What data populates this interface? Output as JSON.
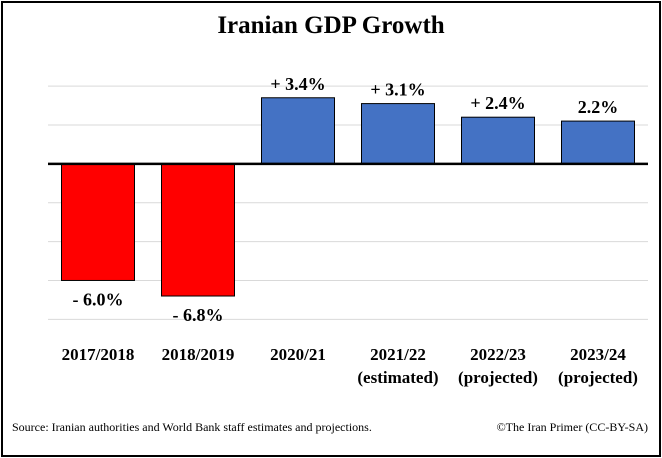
{
  "chart_data": {
    "type": "bar",
    "title": "Iranian GDP Growth",
    "categories": [
      {
        "line1": "2017/2018",
        "line2": ""
      },
      {
        "line1": "2018/2019",
        "line2": ""
      },
      {
        "line1": "2020/21",
        "line2": ""
      },
      {
        "line1": "2021/22",
        "line2": "(estimated)"
      },
      {
        "line1": "2022/23",
        "line2": "(projected)"
      },
      {
        "line1": "2023/24",
        "line2": "(projected)"
      }
    ],
    "values": [
      -6.0,
      -6.8,
      3.4,
      3.1,
      2.4,
      2.2
    ],
    "data_labels": [
      "- 6.0%",
      "- 6.8%",
      "+ 3.4%",
      "+ 3.1%",
      "+ 2.4%",
      "2.2%"
    ],
    "ylim": [
      -8.6,
      5.6
    ],
    "grid": true,
    "colors": {
      "positive": "#4472C4",
      "negative": "#FF0000",
      "grid": "#d9d9d9",
      "axis": "#000000"
    }
  },
  "footer": {
    "source": "Source: Iranian authorities and World Bank staff estimates and projections.",
    "credit": "©The Iran Primer (CC-BY-SA)"
  }
}
